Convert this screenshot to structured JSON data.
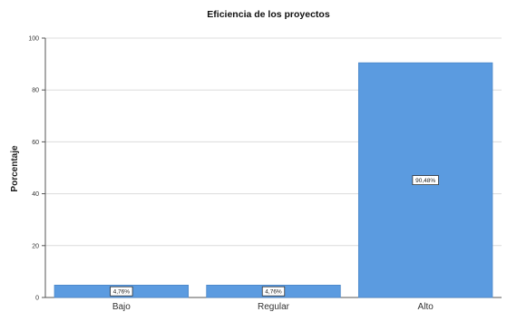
{
  "chart_data": {
    "type": "bar",
    "title": "Eficiencia de los proyectos",
    "xlabel": "",
    "ylabel": "Porcentaje",
    "categories": [
      "Bajo",
      "Regular",
      "Alto"
    ],
    "values": [
      4.76,
      4.76,
      90.48
    ],
    "data_labels": [
      "4,76%",
      "4,76%",
      "90,48%"
    ],
    "ylim": [
      0,
      100
    ],
    "yticks": [
      0,
      20,
      40,
      60,
      80,
      100
    ],
    "ytick_labels": [
      "0",
      "20",
      "40",
      "60",
      "80",
      "100"
    ],
    "grid": true,
    "legend": "none",
    "bar_color": "#5b9be0",
    "bar_edge_color": "#4a86c8"
  }
}
